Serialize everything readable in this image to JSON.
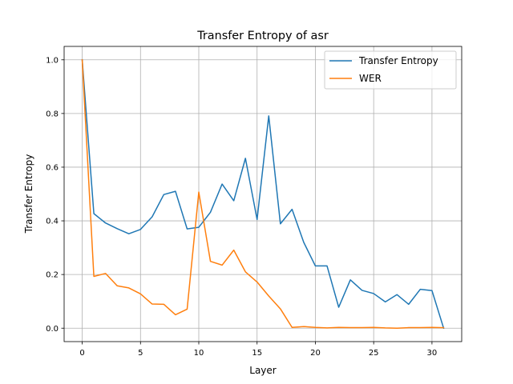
{
  "chart_data": {
    "type": "line",
    "title": "Transfer Entropy of asr",
    "xlabel": "Layer",
    "ylabel": "Transfer Entropy",
    "xlim": [
      -1.55,
      32.55
    ],
    "ylim": [
      -0.05,
      1.05
    ],
    "xticks": [
      0,
      5,
      10,
      15,
      20,
      25,
      30
    ],
    "yticks": [
      0.0,
      0.2,
      0.4,
      0.6,
      0.8,
      1.0
    ],
    "ytick_labels": [
      "0.0",
      "0.2",
      "0.4",
      "0.6",
      "0.8",
      "1.0"
    ],
    "grid": true,
    "legend_position": "top-right",
    "x": [
      0,
      1,
      2,
      3,
      4,
      5,
      6,
      7,
      8,
      9,
      10,
      11,
      12,
      13,
      14,
      15,
      16,
      17,
      18,
      19,
      20,
      21,
      22,
      23,
      24,
      25,
      26,
      27,
      28,
      29,
      30,
      31
    ],
    "series": [
      {
        "name": "Transfer Entropy",
        "color": "#1f77b4",
        "values": [
          1.0,
          0.427,
          0.392,
          0.371,
          0.352,
          0.368,
          0.415,
          0.498,
          0.51,
          0.37,
          0.376,
          0.432,
          0.537,
          0.475,
          0.633,
          0.405,
          0.791,
          0.389,
          0.443,
          0.32,
          0.232,
          0.232,
          0.078,
          0.18,
          0.141,
          0.129,
          0.098,
          0.125,
          0.089,
          0.145,
          0.14,
          0.0
        ]
      },
      {
        "name": "WER",
        "color": "#ff7f0e",
        "values": [
          1.0,
          0.193,
          0.204,
          0.158,
          0.15,
          0.128,
          0.09,
          0.089,
          0.05,
          0.071,
          0.507,
          0.249,
          0.235,
          0.291,
          0.21,
          0.172,
          0.12,
          0.072,
          0.003,
          0.006,
          0.003,
          0.001,
          0.003,
          0.002,
          0.002,
          0.003,
          0.001,
          0.0,
          0.002,
          0.002,
          0.003,
          0.002
        ]
      }
    ]
  }
}
